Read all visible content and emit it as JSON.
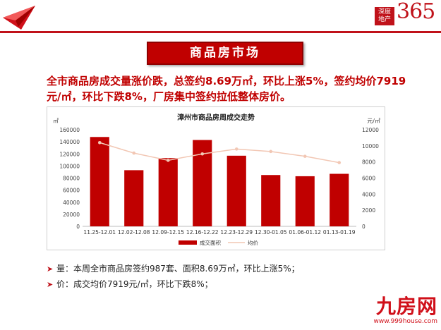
{
  "brand": {
    "box_text_line1": "深度",
    "box_text_line2": "地产",
    "number": "365"
  },
  "title_panel": {
    "label": "商品房市场"
  },
  "headline": "全市商品房成交量涨价跌，总签约8.69万㎡，环比上涨5%，签约均价7919元/㎡，环比下跌8%，厂房集中签约拉低整体房价。",
  "bullets": [
    {
      "text": "量：本周全市商品房签约987套、面积8.69万㎡，环比上涨5%；"
    },
    {
      "text": "价：成交均价7919元/㎡，环比下跌8%；"
    }
  ],
  "footer": {
    "logo": "九房网",
    "url": "www.999house.com"
  },
  "colors": {
    "accent": "#c00000",
    "line": "#f2c7b4"
  },
  "chart_data": {
    "type": "bar",
    "title": "漳州市商品房周成交走势",
    "unit_left": "㎡",
    "unit_right": "元/㎡",
    "categories": [
      "11.25-12.01",
      "12.02-12.08",
      "12.09-12.15",
      "12.16-12.22",
      "12.23-12.29",
      "12.30-01.05",
      "01.06-01.12",
      "01.13-01.19"
    ],
    "series": [
      {
        "name": "成交面积",
        "type": "bar",
        "axis": "left",
        "values": [
          148000,
          93000,
          113000,
          143000,
          117000,
          85000,
          83000,
          87000
        ]
      },
      {
        "name": "均价",
        "type": "line",
        "axis": "right",
        "values": [
          10400,
          9100,
          8200,
          9000,
          9600,
          9300,
          8700,
          7919
        ]
      }
    ],
    "ylim_left": [
      0,
      160000
    ],
    "yticks_left": [
      "0",
      "20000",
      "40000",
      "60000",
      "80000",
      "100000",
      "120000",
      "140000",
      "160000"
    ],
    "ylim_right": [
      0,
      12000
    ],
    "yticks_right": [
      "0",
      "2000",
      "4000",
      "6000",
      "8000",
      "10000",
      "12000"
    ],
    "legend": "bottom"
  }
}
